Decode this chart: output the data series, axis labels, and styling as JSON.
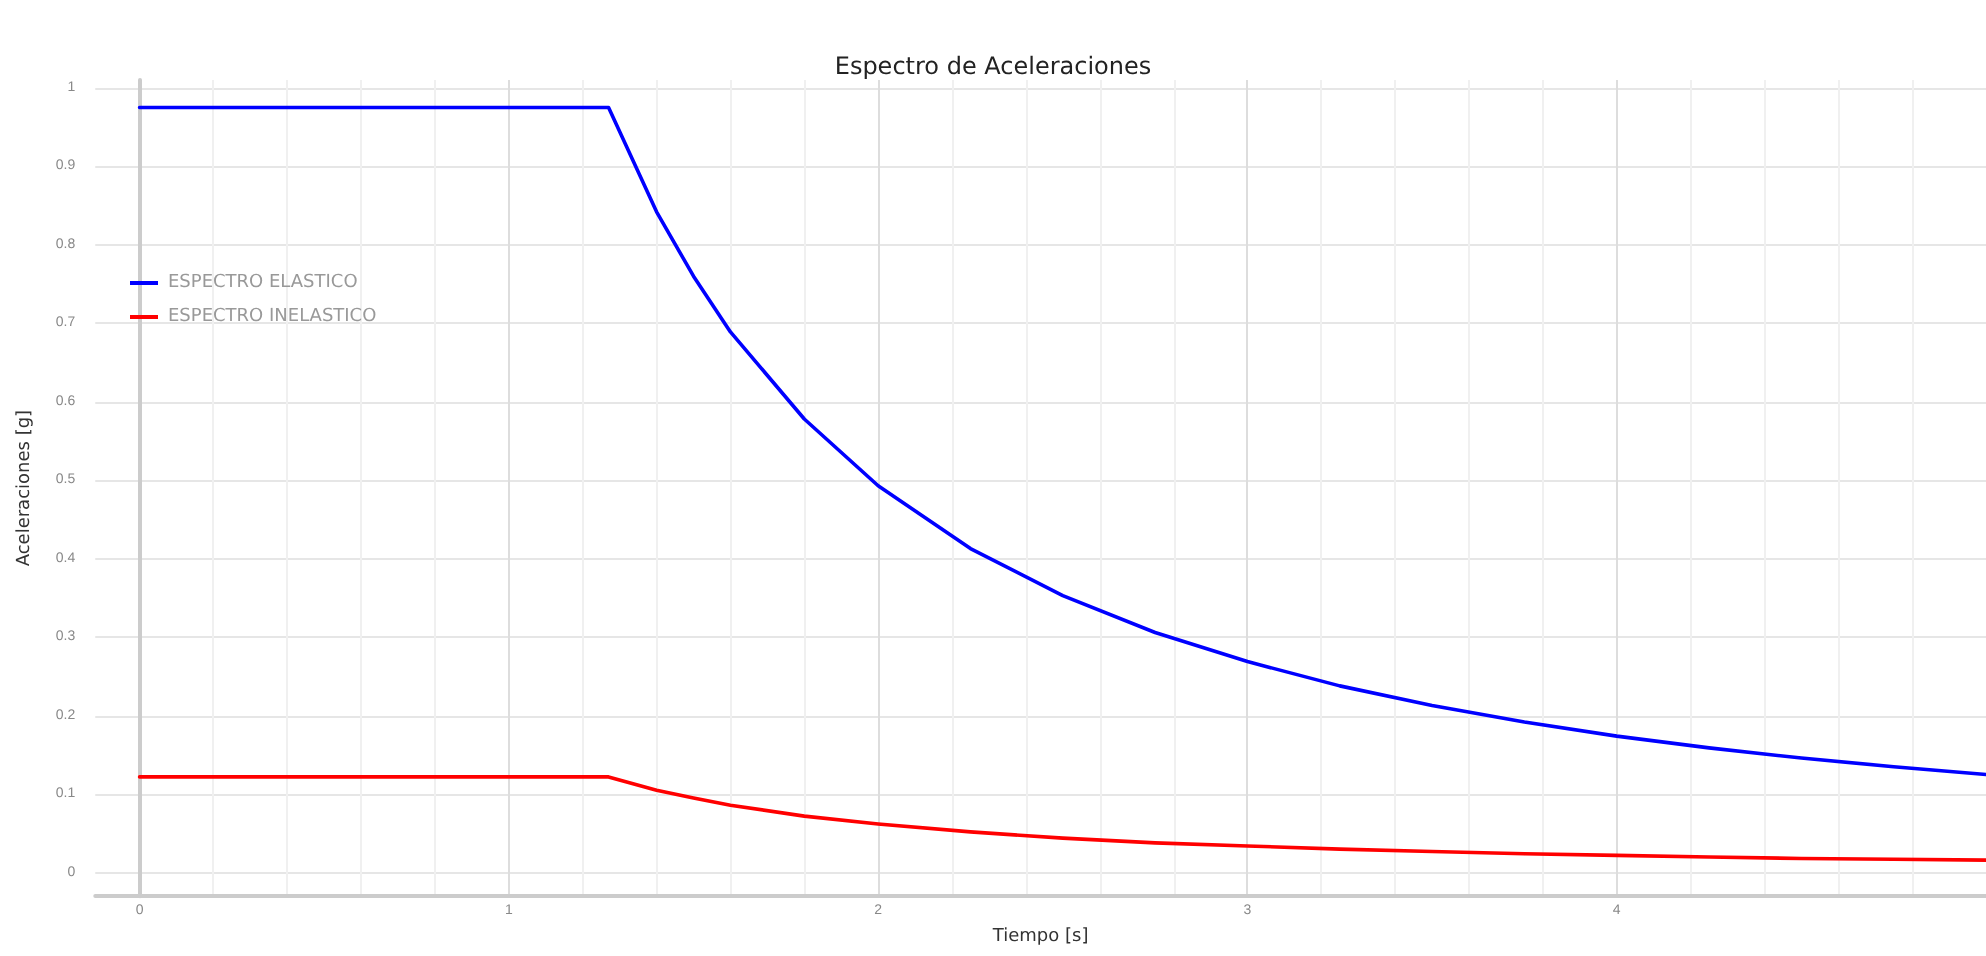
{
  "chart_data": {
    "type": "line",
    "title": "Espectro de Aceleraciones",
    "xlabel": "Tiempo [s]",
    "ylabel": "Aceleraciones [g]",
    "x": [
      0,
      1.27,
      1.4,
      1.5,
      1.6,
      1.8,
      2,
      2.25,
      2.5,
      2.75,
      3,
      3.25,
      3.5,
      3.75,
      4,
      4.25,
      4.5,
      4.75,
      5
    ],
    "series": [
      {
        "name": "ESPECTRO ELASTICO",
        "color": "#0000ff",
        "values": [
          0.975,
          0.975,
          0.842,
          0.76,
          0.689,
          0.578,
          0.493,
          0.413,
          0.353,
          0.306,
          0.269,
          0.238,
          0.213,
          0.192,
          0.174,
          0.159,
          0.146,
          0.135,
          0.125
        ]
      },
      {
        "name": "ESPECTRO INELASTICO",
        "color": "#ff0000",
        "values": [
          0.122,
          0.122,
          0.105,
          0.095,
          0.086,
          0.072,
          0.062,
          0.052,
          0.044,
          0.038,
          0.034,
          0.03,
          0.027,
          0.024,
          0.022,
          0.02,
          0.018,
          0.017,
          0.016
        ]
      }
    ],
    "xlim": [
      -0.12,
      5
    ],
    "xticks": [
      0,
      1,
      2,
      3,
      4
    ],
    "ylim": [
      -0.03,
      1.01
    ],
    "yticks": [
      0,
      0.1,
      0.2,
      0.3,
      0.4,
      0.5,
      0.6,
      0.7,
      0.8,
      0.9,
      1
    ],
    "grid": true,
    "legend": "top left",
    "marker": "none",
    "line_style": "solid"
  }
}
